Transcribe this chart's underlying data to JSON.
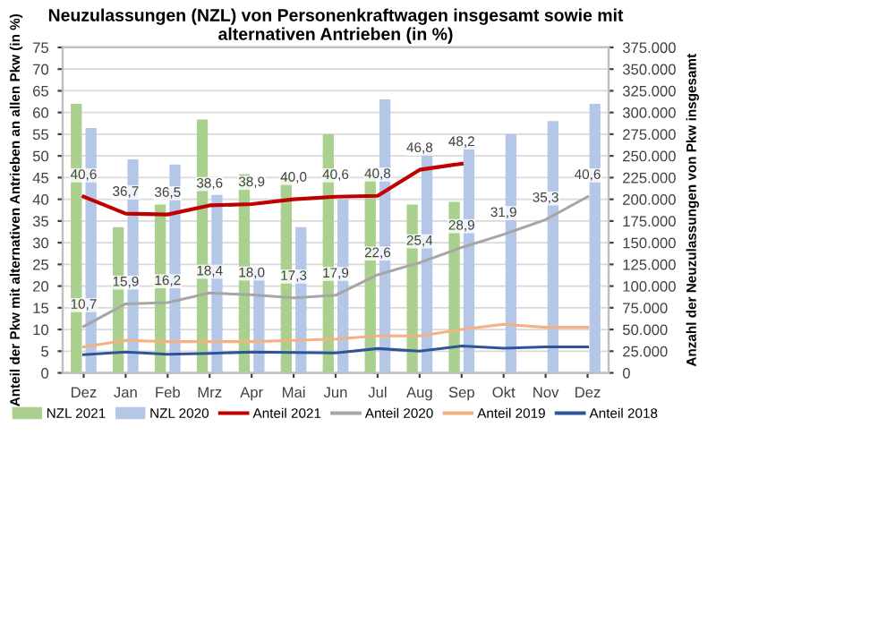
{
  "chart_data": {
    "type": "bar",
    "title": "Neuzulassungen (NZL) von Personenkraftwagen insgesamt sowie mit alternativen Antrieben (in %)",
    "ylabel": "Anteil der Pkw mit alternativen Antrieben an allen Pkw (in %)",
    "y2label": "Anzahl der Neuzulassungen von Pkw insgesamt",
    "categories": [
      "Dez",
      "Jan",
      "Feb",
      "Mrz",
      "Apr",
      "Mai",
      "Jun",
      "Jul",
      "Aug",
      "Sep",
      "Okt",
      "Nov",
      "Dez"
    ],
    "series": [
      {
        "name": "NZL 2021",
        "axis": "y2",
        "color": "#a9d08e",
        "values": [
          310000,
          168000,
          194000,
          292000,
          229000,
          230000,
          275000,
          236000,
          194000,
          197000,
          null,
          null,
          null
        ]
      },
      {
        "name": "NZL 2020",
        "axis": "y2",
        "color": "#b4c7e7",
        "values": [
          282000,
          246000,
          240000,
          205000,
          120000,
          168000,
          200000,
          315000,
          252000,
          262000,
          275000,
          290000,
          310000
        ]
      },
      {
        "name": "Anteil 2021",
        "type": "line",
        "color": "#c00000",
        "values": [
          40.6,
          36.7,
          36.5,
          38.6,
          38.9,
          40.0,
          40.6,
          40.8,
          46.8,
          48.2,
          null,
          null,
          null
        ],
        "value_labels": [
          "40,6",
          "36,7",
          "36,5",
          "38,6",
          "38,9",
          "40,0",
          "40,6",
          "40,8",
          "46,8",
          "48,2",
          null,
          null,
          null
        ]
      },
      {
        "name": "Anteil 2020",
        "type": "line",
        "color": "#a6a6a6",
        "values": [
          10.7,
          15.9,
          16.2,
          18.4,
          18.0,
          17.3,
          17.9,
          22.6,
          25.4,
          28.9,
          31.9,
          35.3,
          40.6
        ],
        "value_labels": [
          "10,7",
          "15,9",
          "16,2",
          "18,4",
          "18,0",
          "17,3",
          "17,9",
          "22,6",
          "25,4",
          "28,9",
          "31,9",
          "35,3",
          "40,6"
        ]
      },
      {
        "name": "Anteil 2019",
        "type": "line",
        "color": "#f4b183",
        "values": [
          6.0,
          7.5,
          7.2,
          7.2,
          7.2,
          7.5,
          7.8,
          8.5,
          8.5,
          10.0,
          11.2,
          10.5,
          10.5
        ]
      },
      {
        "name": "Anteil 2018",
        "type": "line",
        "color": "#2f5597",
        "values": [
          4.2,
          4.8,
          4.3,
          4.5,
          4.8,
          4.7,
          4.6,
          5.6,
          5.0,
          6.2,
          5.7,
          6.0,
          6.0
        ]
      }
    ],
    "ylim": [
      0,
      75
    ],
    "yticks": [
      0,
      5,
      10,
      15,
      20,
      25,
      30,
      35,
      40,
      45,
      50,
      55,
      60,
      65,
      70,
      75
    ],
    "y2lim": [
      0,
      375000
    ],
    "y2ticks": [
      {
        "value": 0,
        "label": "0"
      },
      {
        "value": 25000,
        "label": "25.000"
      },
      {
        "value": 50000,
        "label": "50.000"
      },
      {
        "value": 75000,
        "label": "75.000"
      },
      {
        "value": 100000,
        "label": "100.000"
      },
      {
        "value": 125000,
        "label": "125.000"
      },
      {
        "value": 150000,
        "label": "150.000"
      },
      {
        "value": 175000,
        "label": "175.000"
      },
      {
        "value": 200000,
        "label": "200.000"
      },
      {
        "value": 225000,
        "label": "225.000"
      },
      {
        "value": 250000,
        "label": "250.000"
      },
      {
        "value": 275000,
        "label": "275.000"
      },
      {
        "value": 300000,
        "label": "300.000"
      },
      {
        "value": 325000,
        "label": "325.000"
      },
      {
        "value": 350000,
        "label": "350.000"
      },
      {
        "value": 375000,
        "label": "375.000"
      }
    ],
    "grid": "y",
    "legend": "bottom",
    "marker": "none",
    "line_style": "solid"
  }
}
